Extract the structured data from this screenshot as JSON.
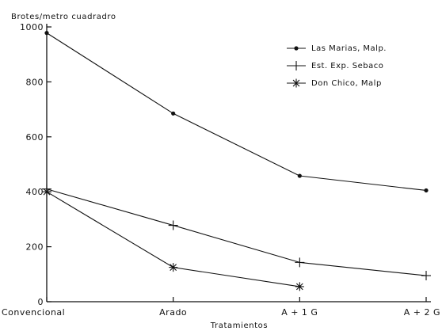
{
  "chart_data": {
    "type": "line",
    "ylabel": "Brotes/metro cuadradro",
    "xlabel": "Tratamientos",
    "categories": [
      "Convencional",
      "Arado",
      "A + 1 G",
      "A + 2 G"
    ],
    "ylim": [
      0,
      1000
    ],
    "yticks": [
      0,
      200,
      400,
      600,
      800,
      1000
    ],
    "grid": false,
    "legend_position": "top-right",
    "series": [
      {
        "name": "Las Marias, Malp.",
        "marker": "dot",
        "values": [
          978,
          685,
          458,
          405
        ]
      },
      {
        "name": "Est. Exp. Sebaco",
        "marker": "plus",
        "values": [
          410,
          278,
          143,
          95
        ]
      },
      {
        "name": "Don Chico, Malp",
        "marker": "asterisk",
        "values": [
          400,
          125,
          55,
          null
        ]
      }
    ]
  }
}
